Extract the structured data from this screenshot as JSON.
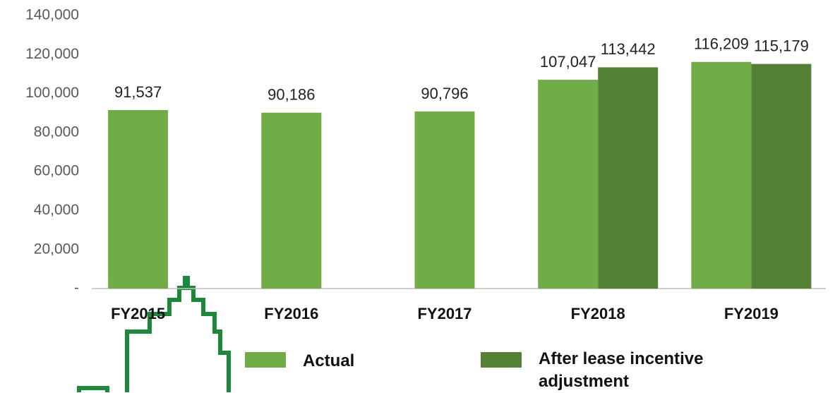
{
  "chart_data": {
    "type": "bar",
    "categories": [
      "FY2015",
      "FY2016",
      "FY2017",
      "FY2018",
      "FY2019"
    ],
    "series": [
      {
        "name": "Actual",
        "color": "#70ad47",
        "values": [
          91537,
          90186,
          90796,
          107047,
          116209
        ],
        "value_labels": [
          "91,537",
          "90,186",
          "90,796",
          "107,047",
          "116,209"
        ]
      },
      {
        "name": "After lease incentive adjustment",
        "color": "#548235",
        "values": [
          null,
          null,
          null,
          113442,
          115179
        ],
        "value_labels": [
          null,
          null,
          null,
          "113,442",
          "115,179"
        ]
      }
    ],
    "ylim": [
      0,
      140000
    ],
    "yticks": [
      {
        "value": 0,
        "label": "-"
      },
      {
        "value": 20000,
        "label": "20,000"
      },
      {
        "value": 40000,
        "label": "40,000"
      },
      {
        "value": 60000,
        "label": "60,000"
      },
      {
        "value": 80000,
        "label": "80,000"
      },
      {
        "value": 100000,
        "label": "100,000"
      },
      {
        "value": 120000,
        "label": "120,000"
      },
      {
        "value": 140000,
        "label": "140,000"
      }
    ],
    "legend": "bottom"
  }
}
